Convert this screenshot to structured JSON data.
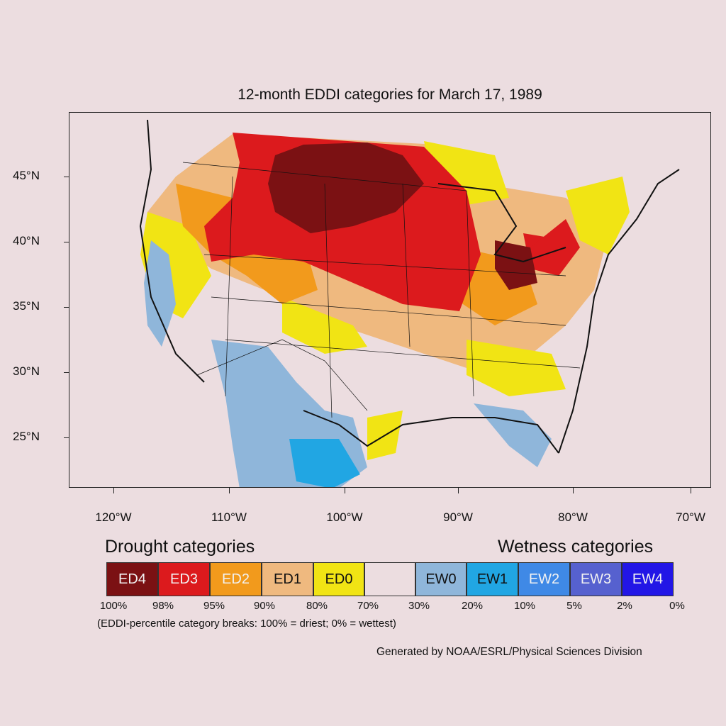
{
  "title": "12-month EDDI categories for March 17, 1989",
  "lat_labels": [
    "45°N",
    "40°N",
    "35°N",
    "30°N",
    "25°N"
  ],
  "lon_labels": [
    "120°W",
    "110°W",
    "100°W",
    "90°W",
    "80°W",
    "70°W"
  ],
  "legend": {
    "drought_title": "Drought categories",
    "wetness_title": "Wetness categories",
    "categories": [
      {
        "label": "ED4",
        "color": "#7b1113",
        "text_color": "#f2f2f2"
      },
      {
        "label": "ED3",
        "color": "#dc1a1d",
        "text_color": "#f2f2f2"
      },
      {
        "label": "ED2",
        "color": "#f29a1c",
        "text_color": "#f2f2f2"
      },
      {
        "label": "ED1",
        "color": "#efb97f",
        "text_color": "#111111"
      },
      {
        "label": "ED0",
        "color": "#f1e414",
        "text_color": "#111111"
      },
      {
        "label": "",
        "color": "#ecdde0",
        "text_color": "#111111"
      },
      {
        "label": "EW0",
        "color": "#8fb6da",
        "text_color": "#111111"
      },
      {
        "label": "EW1",
        "color": "#21a6e3",
        "text_color": "#111111"
      },
      {
        "label": "EW2",
        "color": "#3f89e6",
        "text_color": "#f2f2f2"
      },
      {
        "label": "EW3",
        "color": "#5661cf",
        "text_color": "#f2f2f2"
      },
      {
        "label": "EW4",
        "color": "#2216e6",
        "text_color": "#f2f2f2"
      }
    ],
    "percentiles": [
      "100%",
      "98%",
      "95%",
      "90%",
      "80%",
      "70%",
      "30%",
      "20%",
      "10%",
      "5%",
      "2%",
      "0%"
    ],
    "breaks_note": "(EDDI-percentile category breaks: 100% = driest; 0% = wettest)"
  },
  "credit": "Generated by NOAA/ESRL/Physical Sciences Division"
}
